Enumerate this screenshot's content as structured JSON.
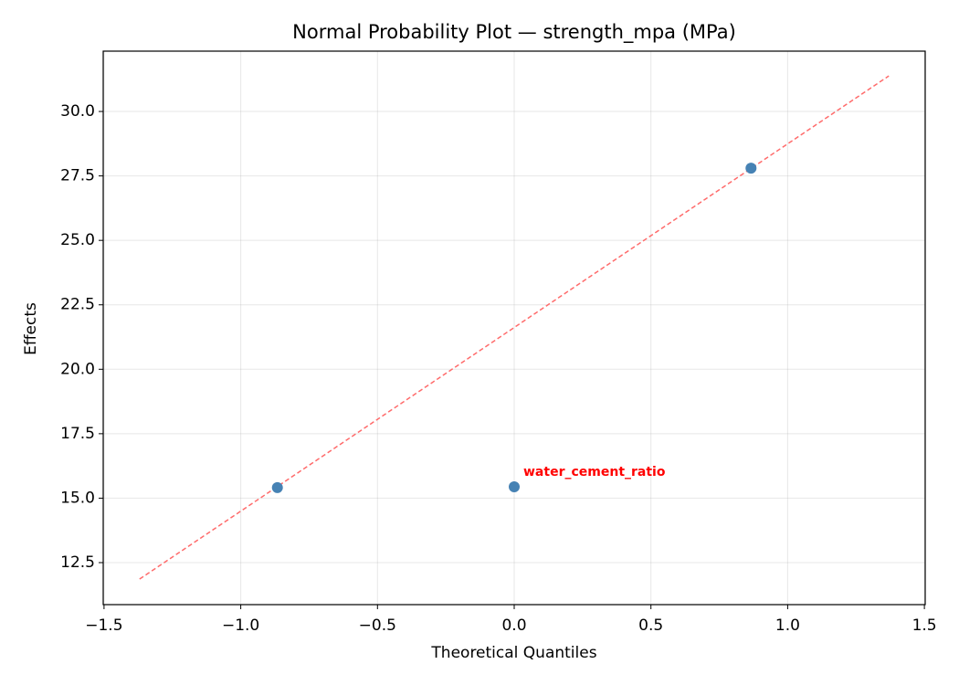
{
  "chart_data": {
    "type": "scatter",
    "title": "Normal Probability Plot — strength_mpa (MPa)",
    "x_label": "Theoretical Quantiles",
    "y_label": "Effects",
    "x": [
      -0.866,
      0,
      0.866
    ],
    "series": [
      {
        "color": "#4682b4",
        "values": [
          15.41,
          15.44,
          27.8
        ]
      }
    ],
    "reference_line": {
      "color": "#ff6b6b",
      "x": [
        -1.37,
        1.37
      ],
      "y": [
        11.86,
        31.38
      ]
    },
    "annotations": [
      {
        "text": "water_cement_ratio",
        "x": 0,
        "y": 15.44,
        "color": "#ff0000"
      }
    ],
    "xlim": [
      -1.503,
      1.503
    ],
    "ylim": [
      10.87,
      32.34
    ],
    "xticks": [
      {
        "value": -1.5,
        "label": "−1.5"
      },
      {
        "value": -1,
        "label": "−1.0"
      },
      {
        "value": -0.5,
        "label": "−0.5"
      },
      {
        "value": 0,
        "label": "0.0"
      },
      {
        "value": 0.5,
        "label": "0.5"
      },
      {
        "value": 1,
        "label": "1.0"
      },
      {
        "value": 1.5,
        "label": "1.5"
      }
    ],
    "yticks": [
      12.5,
      {
        "value": 15,
        "label": "15.0"
      },
      17.5,
      {
        "value": 20,
        "label": "20.0"
      },
      22.5,
      {
        "value": 25,
        "label": "25.0"
      },
      27.5,
      {
        "value": 30,
        "label": "30.0"
      }
    ],
    "grid": true
  }
}
